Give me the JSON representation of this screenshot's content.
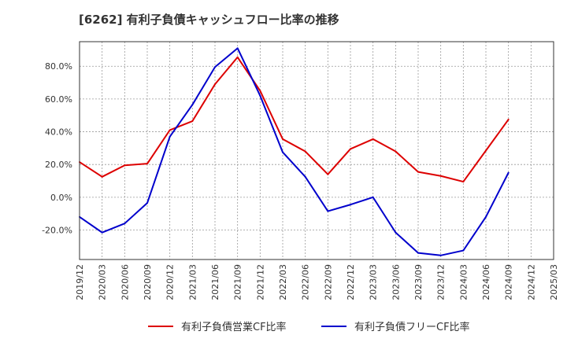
{
  "chart_data": {
    "type": "line",
    "title": "[6262]  有利子負債キャッシュフロー比率の推移",
    "xlabel": "",
    "ylabel": "",
    "grid": true,
    "legend_position": "bottom",
    "ylim": [
      -38,
      95
    ],
    "y_ticks": [
      -20,
      0,
      20,
      40,
      60,
      80
    ],
    "y_tick_labels": [
      "-20.0%",
      "0.0%",
      "20.0%",
      "40.0%",
      "60.0%",
      "80.0%"
    ],
    "x_ticks": [
      "2019/12",
      "2020/03",
      "2020/06",
      "2020/09",
      "2020/12",
      "2021/03",
      "2021/06",
      "2021/09",
      "2021/12",
      "2022/03",
      "2022/06",
      "2022/09",
      "2022/12",
      "2023/03",
      "2023/06",
      "2023/09",
      "2023/12",
      "2024/03",
      "2024/06",
      "2024/09",
      "2024/12",
      "2025/03"
    ],
    "series": [
      {
        "name": "有利子負債営業CF比率",
        "color": "#dd0000",
        "x": [
          "2019/12",
          "2020/03",
          "2020/06",
          "2020/09",
          "2020/12",
          "2021/03",
          "2021/06",
          "2021/09",
          "2021/12",
          "2022/03",
          "2022/06",
          "2022/09",
          "2022/12",
          "2023/03",
          "2023/06",
          "2023/09",
          "2023/12",
          "2024/03",
          "2024/06",
          "2024/09"
        ],
        "values": [
          21.5,
          12.5,
          19.5,
          20.5,
          41.0,
          46.5,
          69.0,
          85.5,
          65.0,
          35.5,
          28.0,
          14.0,
          29.5,
          35.5,
          28.0,
          15.5,
          13.0,
          9.5,
          28.5,
          47.5
        ]
      },
      {
        "name": "有利子負債フリーCF比率",
        "color": "#0000cc",
        "x": [
          "2019/12",
          "2020/03",
          "2020/06",
          "2020/09",
          "2020/12",
          "2021/03",
          "2021/06",
          "2021/09",
          "2021/12",
          "2022/03",
          "2022/06",
          "2022/09",
          "2022/12",
          "2023/03",
          "2023/06",
          "2023/09",
          "2023/12",
          "2024/03",
          "2024/06",
          "2024/09"
        ],
        "values": [
          -12.0,
          -21.5,
          -16.0,
          -3.5,
          37.0,
          56.5,
          79.5,
          91.0,
          62.0,
          27.5,
          12.5,
          -8.5,
          -4.5,
          0.0,
          -21.5,
          -34.0,
          -35.5,
          -32.5,
          -12.0,
          15.0
        ]
      }
    ]
  }
}
